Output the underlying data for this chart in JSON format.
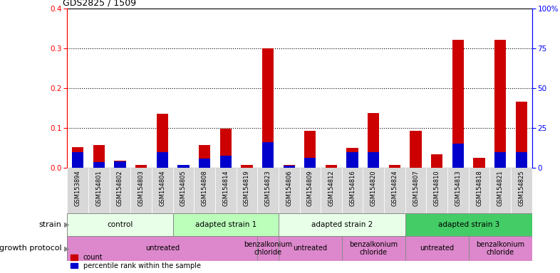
{
  "title": "GDS2825 / 1509",
  "samples": [
    "GSM153894",
    "GSM154801",
    "GSM154802",
    "GSM154803",
    "GSM154804",
    "GSM154805",
    "GSM154808",
    "GSM154814",
    "GSM154819",
    "GSM154823",
    "GSM154806",
    "GSM154809",
    "GSM154812",
    "GSM154816",
    "GSM154820",
    "GSM154824",
    "GSM154807",
    "GSM154810",
    "GSM154813",
    "GSM154818",
    "GSM154821",
    "GSM154825"
  ],
  "count_values": [
    0.052,
    0.057,
    0.018,
    0.008,
    0.135,
    0.008,
    0.058,
    0.098,
    0.008,
    0.3,
    0.008,
    0.092,
    0.008,
    0.05,
    0.138,
    0.008,
    0.092,
    0.035,
    0.32,
    0.025,
    0.32,
    0.165
  ],
  "percentile_values": [
    0.04,
    0.015,
    0.017,
    0.0,
    0.04,
    0.008,
    0.023,
    0.03,
    0.0,
    0.065,
    0.005,
    0.025,
    0.0,
    0.04,
    0.04,
    0.0,
    0.0,
    0.0,
    0.06,
    0.0,
    0.04,
    0.04
  ],
  "ylim_left": [
    0,
    0.4
  ],
  "ylim_right": [
    0,
    100
  ],
  "yticks_left": [
    0.0,
    0.1,
    0.2,
    0.3,
    0.4
  ],
  "yticks_right": [
    0,
    25,
    50,
    75,
    100
  ],
  "ytick_labels_right": [
    "0",
    "25",
    "50",
    "75",
    "100%"
  ],
  "grid_values": [
    0.1,
    0.2,
    0.3
  ],
  "bar_color_count": "#cc0000",
  "bar_color_percentile": "#0000cc",
  "bar_width": 0.55,
  "strain_groups": [
    {
      "label": "control",
      "start": 0,
      "end": 4,
      "color": "#e8ffe8"
    },
    {
      "label": "adapted strain 1",
      "start": 5,
      "end": 9,
      "color": "#bbffbb"
    },
    {
      "label": "adapted strain 2",
      "start": 10,
      "end": 15,
      "color": "#e8ffe8"
    },
    {
      "label": "adapted strain 3",
      "start": 16,
      "end": 21,
      "color": "#44cc66"
    }
  ],
  "proto_spans": [
    {
      "label": "untreated",
      "start": 0,
      "end": 8
    },
    {
      "label": "benzalkonium\nchloride",
      "start": 9,
      "end": 9
    },
    {
      "label": "untreated",
      "start": 10,
      "end": 12
    },
    {
      "label": "benzalkonium\nchloride",
      "start": 13,
      "end": 15
    },
    {
      "label": "untreated",
      "start": 16,
      "end": 18
    },
    {
      "label": "benzalkonium\nchloride",
      "start": 19,
      "end": 21
    }
  ],
  "proto_color": "#dd88cc",
  "legend_count_label": "count",
  "legend_percentile_label": "percentile rank within the sample",
  "strain_label": "strain",
  "protocol_label": "growth protocol",
  "tick_bg_color": "#d8d8d8",
  "background_color": "#ffffff"
}
